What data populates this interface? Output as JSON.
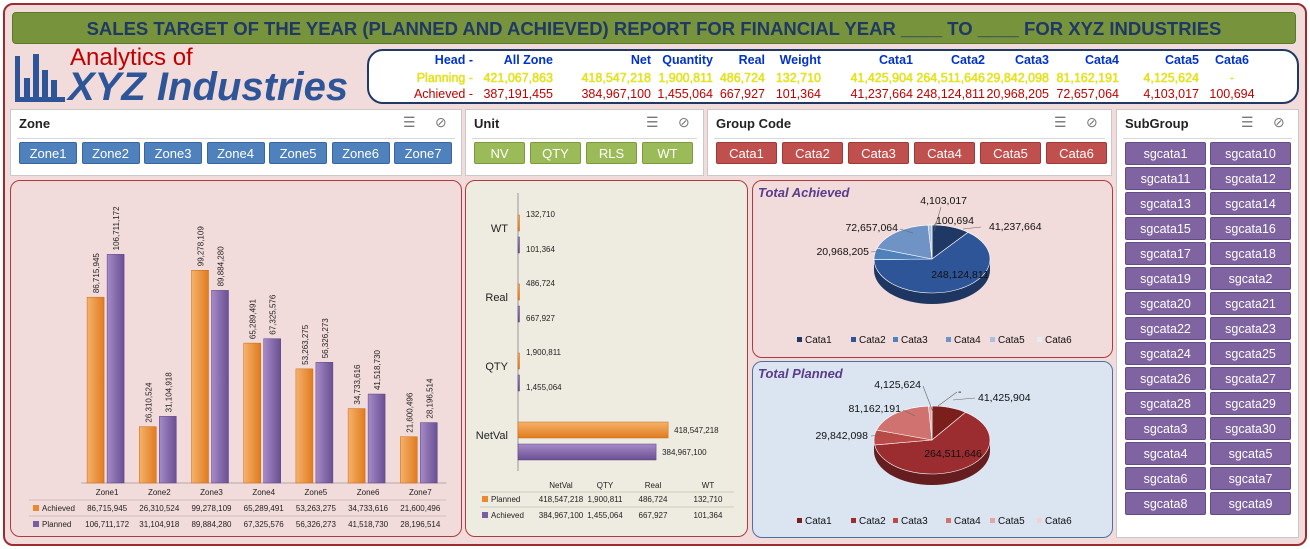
{
  "title": "SALES TARGET OF THE YEAR (PLANNED AND ACHIEVED) REPORT FOR FINANCIAL YEAR ____ TO ____ FOR XYZ INDUSTRIES",
  "logo": {
    "line1": "Analytics of",
    "line2": "XYZ Industries"
  },
  "summary": {
    "head": [
      "Head -",
      "All Zone",
      "Net",
      "Quantity",
      "Real",
      "Weight",
      "Cata1",
      "Cata2",
      "Cata3",
      "Cata4",
      "Cata5",
      "Cata6"
    ],
    "planning": [
      "Planning -",
      "421,067,863",
      "418,547,218",
      "1,900,811",
      "486,724",
      "132,710",
      "41,425,904",
      "264,511,646",
      "29,842,098",
      "81,162,191",
      "4,125,624",
      "-"
    ],
    "achieved": [
      "Achieved -",
      "387,191,455",
      "384,967,100",
      "1,455,064",
      "667,927",
      "101,364",
      "41,237,664",
      "248,124,811",
      "20,968,205",
      "72,657,064",
      "4,103,017",
      "100,694"
    ]
  },
  "slicers": {
    "zone": {
      "title": "Zone",
      "items": [
        "Zone1",
        "Zone2",
        "Zone3",
        "Zone4",
        "Zone5",
        "Zone6",
        "Zone7"
      ]
    },
    "unit": {
      "title": "Unit",
      "items": [
        "NV",
        "QTY",
        "RLS",
        "WT"
      ]
    },
    "group": {
      "title": "Group Code",
      "items": [
        "Cata1",
        "Cata2",
        "Cata3",
        "Cata4",
        "Cata5",
        "Cata6"
      ]
    },
    "subgroup": {
      "title": "SubGroup",
      "items": [
        "sgcata1",
        "sgcata10",
        "sgcata11",
        "sgcata12",
        "sgcata13",
        "sgcata14",
        "sgcata15",
        "sgcata16",
        "sgcata17",
        "sgcata18",
        "sgcata19",
        "sgcata2",
        "sgcata20",
        "sgcata21",
        "sgcata22",
        "sgcata23",
        "sgcata24",
        "sgcata25",
        "sgcata26",
        "sgcata27",
        "sgcata28",
        "sgcata29",
        "sgcata3",
        "sgcata30",
        "sgcata4",
        "sgcata5",
        "sgcata6",
        "sgcata7",
        "sgcata8",
        "sgcata9"
      ]
    }
  },
  "colors": {
    "achieved": "#e98a2f",
    "planned": "#7a5fa0",
    "blue": "#4f81bd",
    "green": "#9bbb59",
    "red": "#c0504d",
    "purple": "#8064a2"
  },
  "chart_data": [
    {
      "type": "bar",
      "categories": [
        "Zone1",
        "Zone2",
        "Zone3",
        "Zone4",
        "Zone5",
        "Zone6",
        "Zone7"
      ],
      "series": [
        {
          "name": "Achieved",
          "values": [
            86715945,
            26310524,
            99278109,
            65289491,
            53263275,
            34733616,
            21600496
          ],
          "labels": [
            "86,715,945",
            "26,310,524",
            "99,278,109",
            "65,289,491",
            "53,263,275",
            "34,733,616",
            "21,600,496"
          ]
        },
        {
          "name": "Planned",
          "values": [
            106711172,
            31104918,
            89884280,
            67325576,
            56326273,
            41518730,
            28196514
          ],
          "labels": [
            "106,711,172",
            "31,104,918",
            "89,884,280",
            "67,325,576",
            "56,326,273",
            "41,518,730",
            "28,196,514"
          ]
        }
      ],
      "ylim": [
        0,
        112000000
      ]
    },
    {
      "type": "bar",
      "categories": [
        "NetVal",
        "QTY",
        "Real",
        "WT"
      ],
      "series": [
        {
          "name": "Planned",
          "values": [
            418547218,
            1900811,
            486724,
            132710
          ],
          "labels": [
            "418,547,218",
            "1,900,811",
            "486,724",
            "132,710"
          ]
        },
        {
          "name": "Achieved",
          "values": [
            384967100,
            1455064,
            667927,
            101364
          ],
          "labels": [
            "384,967,100",
            "1,455,064",
            "667,927",
            "101,364"
          ]
        }
      ],
      "xlim": [
        0,
        460000000
      ]
    },
    {
      "type": "pie",
      "title": "Total Achieved",
      "labels": [
        "Cata1",
        "Cata2",
        "Cata3",
        "Cata4",
        "Cata5",
        "Cata6"
      ],
      "values": [
        41237664,
        248124811,
        20968205,
        72657064,
        4103017,
        100694
      ],
      "value_labels": [
        "41,237,664",
        "248,124,811",
        "20,968,205",
        "72,657,064",
        "4,103,017",
        "100,694"
      ],
      "colors": [
        "#1f3864",
        "#2e5597",
        "#4f81bd",
        "#6f93c4",
        "#a9c0e0",
        "#e4ecf6"
      ]
    },
    {
      "type": "pie",
      "title": "Total Planned",
      "labels": [
        "Cata1",
        "Cata2",
        "Cata3",
        "Cata4",
        "Cata5",
        "Cata6"
      ],
      "values": [
        41425904,
        264511646,
        29842098,
        81162191,
        4125624,
        0
      ],
      "value_labels": [
        "41,425,904",
        "264,511,646",
        "29,842,098",
        "81,162,191",
        "4,125,624",
        "-"
      ],
      "colors": [
        "#7b1f1d",
        "#9b2d30",
        "#b84a47",
        "#d07370",
        "#e3a6a4",
        "#f3d3d2"
      ]
    }
  ]
}
